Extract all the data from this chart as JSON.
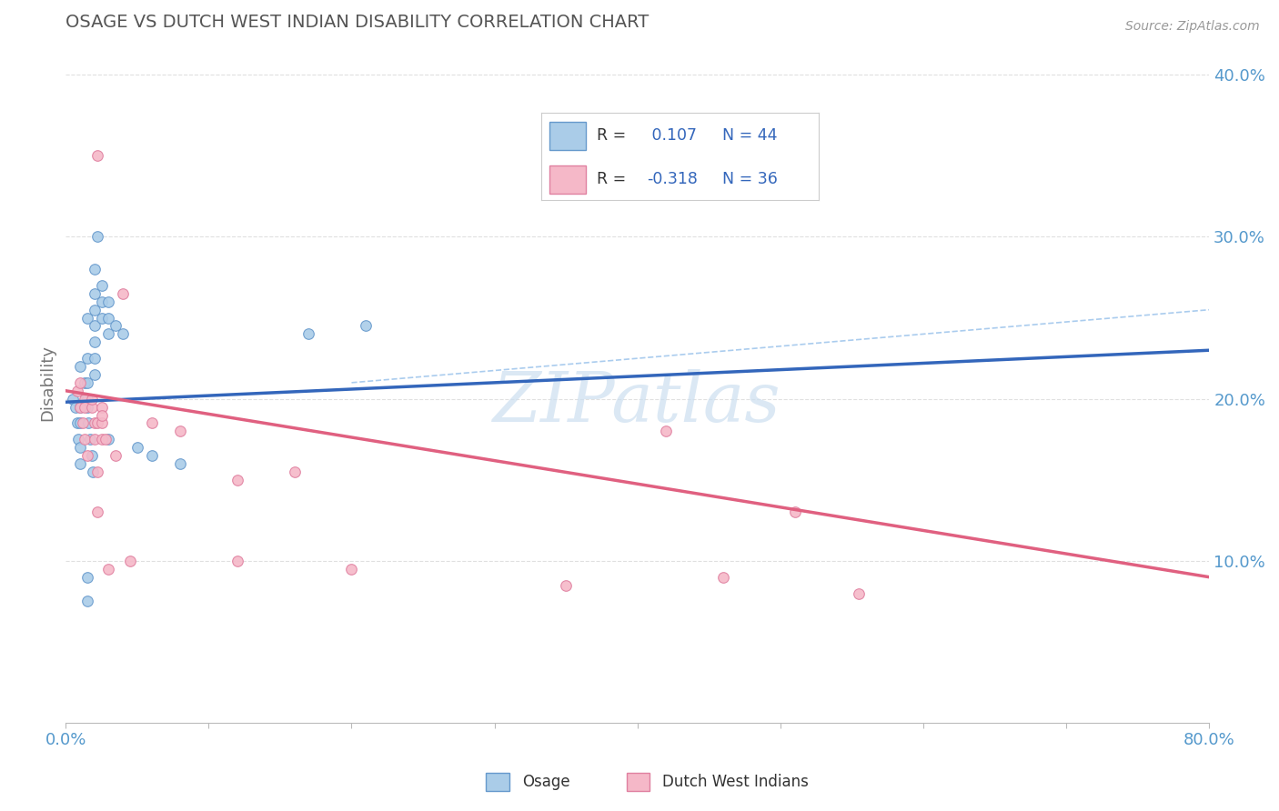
{
  "title": "OSAGE VS DUTCH WEST INDIAN DISABILITY CORRELATION CHART",
  "source": "Source: ZipAtlas.com",
  "ylabel": "Disability",
  "xlim": [
    0.0,
    0.8
  ],
  "ylim": [
    0.0,
    0.42
  ],
  "ytick_labels": [
    "10.0%",
    "20.0%",
    "30.0%",
    "40.0%"
  ],
  "ytick_positions": [
    0.1,
    0.2,
    0.3,
    0.4
  ],
  "osage_color": "#aacce8",
  "dutch_color": "#f5b8c8",
  "osage_edge_color": "#6699cc",
  "dutch_edge_color": "#e080a0",
  "osage_line_color": "#3366bb",
  "dutch_line_color": "#e06080",
  "dashed_line_color": "#aaccee",
  "background_color": "#ffffff",
  "grid_color": "#e0e0e0",
  "title_color": "#555555",
  "source_color": "#999999",
  "tick_color": "#5599cc",
  "legend_r_color": "#3366bb",
  "osage_scatter": [
    [
      0.005,
      0.2
    ],
    [
      0.007,
      0.195
    ],
    [
      0.008,
      0.185
    ],
    [
      0.009,
      0.175
    ],
    [
      0.01,
      0.22
    ],
    [
      0.01,
      0.195
    ],
    [
      0.01,
      0.185
    ],
    [
      0.01,
      0.17
    ],
    [
      0.01,
      0.16
    ],
    [
      0.013,
      0.21
    ],
    [
      0.014,
      0.2
    ],
    [
      0.015,
      0.25
    ],
    [
      0.015,
      0.225
    ],
    [
      0.015,
      0.21
    ],
    [
      0.015,
      0.2
    ],
    [
      0.015,
      0.195
    ],
    [
      0.016,
      0.185
    ],
    [
      0.017,
      0.175
    ],
    [
      0.018,
      0.165
    ],
    [
      0.019,
      0.155
    ],
    [
      0.02,
      0.28
    ],
    [
      0.02,
      0.265
    ],
    [
      0.02,
      0.255
    ],
    [
      0.02,
      0.245
    ],
    [
      0.02,
      0.235
    ],
    [
      0.02,
      0.225
    ],
    [
      0.02,
      0.215
    ],
    [
      0.022,
      0.3
    ],
    [
      0.025,
      0.27
    ],
    [
      0.025,
      0.26
    ],
    [
      0.025,
      0.25
    ],
    [
      0.03,
      0.26
    ],
    [
      0.03,
      0.25
    ],
    [
      0.03,
      0.24
    ],
    [
      0.035,
      0.245
    ],
    [
      0.04,
      0.24
    ],
    [
      0.05,
      0.17
    ],
    [
      0.015,
      0.09
    ],
    [
      0.015,
      0.075
    ],
    [
      0.03,
      0.175
    ],
    [
      0.06,
      0.165
    ],
    [
      0.08,
      0.16
    ],
    [
      0.17,
      0.24
    ],
    [
      0.21,
      0.245
    ]
  ],
  "dutch_scatter": [
    [
      0.008,
      0.205
    ],
    [
      0.01,
      0.195
    ],
    [
      0.012,
      0.185
    ],
    [
      0.013,
      0.2
    ],
    [
      0.013,
      0.195
    ],
    [
      0.013,
      0.175
    ],
    [
      0.015,
      0.165
    ],
    [
      0.018,
      0.195
    ],
    [
      0.02,
      0.185
    ],
    [
      0.02,
      0.175
    ],
    [
      0.022,
      0.35
    ],
    [
      0.022,
      0.185
    ],
    [
      0.022,
      0.155
    ],
    [
      0.022,
      0.13
    ],
    [
      0.025,
      0.195
    ],
    [
      0.025,
      0.185
    ],
    [
      0.025,
      0.175
    ],
    [
      0.028,
      0.175
    ],
    [
      0.03,
      0.095
    ],
    [
      0.04,
      0.265
    ],
    [
      0.06,
      0.185
    ],
    [
      0.08,
      0.18
    ],
    [
      0.12,
      0.15
    ],
    [
      0.12,
      0.1
    ],
    [
      0.16,
      0.155
    ],
    [
      0.2,
      0.095
    ],
    [
      0.35,
      0.085
    ],
    [
      0.42,
      0.18
    ],
    [
      0.46,
      0.09
    ],
    [
      0.51,
      0.13
    ],
    [
      0.555,
      0.08
    ],
    [
      0.01,
      0.21
    ],
    [
      0.018,
      0.2
    ],
    [
      0.025,
      0.19
    ],
    [
      0.035,
      0.165
    ],
    [
      0.045,
      0.1
    ]
  ],
  "osage_R": 0.107,
  "osage_N": 44,
  "dutch_R": -0.318,
  "dutch_N": 36,
  "osage_line_x0": 0.0,
  "osage_line_y0": 0.198,
  "osage_line_x1": 0.8,
  "osage_line_y1": 0.23,
  "dutch_line_x0": 0.0,
  "dutch_line_y0": 0.205,
  "dutch_line_x1": 0.8,
  "dutch_line_y1": 0.09,
  "dash_line_x0": 0.2,
  "dash_line_y0": 0.21,
  "dash_line_x1": 0.8,
  "dash_line_y1": 0.255,
  "marker_size": 70,
  "watermark_text": "ZIPatlas"
}
